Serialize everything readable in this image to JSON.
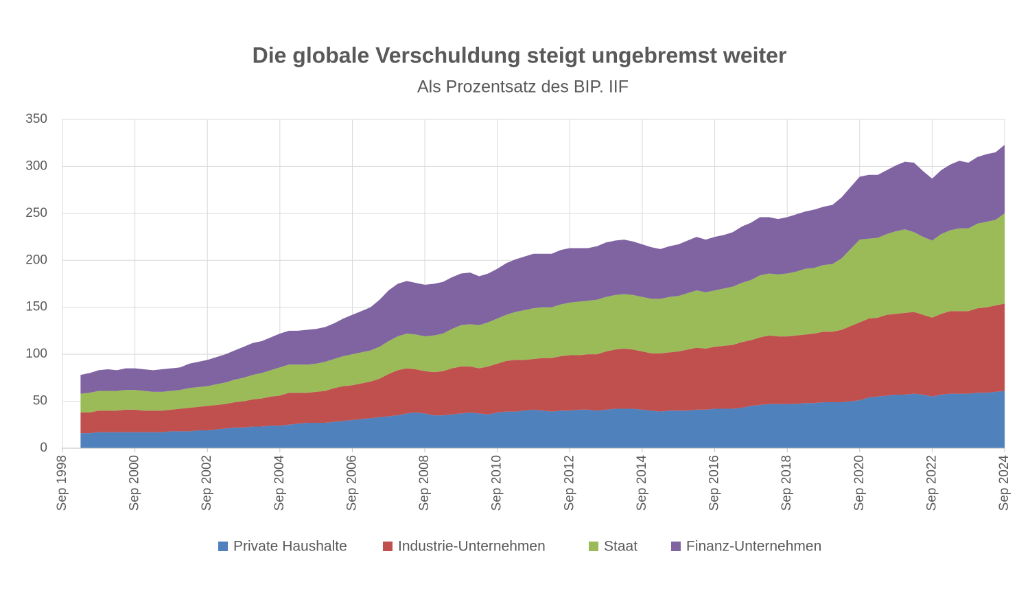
{
  "chart_data": {
    "type": "stacked_area",
    "title": "Die globale Verschuldung steigt ungebremst weiter",
    "subtitle": "Als Prozentsatz des BIP. IIF",
    "x": [
      "1999-03",
      "1999-06",
      "1999-09",
      "1999-12",
      "2000-03",
      "2000-06",
      "2000-09",
      "2000-12",
      "2001-03",
      "2001-06",
      "2001-09",
      "2001-12",
      "2002-03",
      "2002-06",
      "2002-09",
      "2002-12",
      "2003-03",
      "2003-06",
      "2003-09",
      "2003-12",
      "2004-03",
      "2004-06",
      "2004-09",
      "2004-12",
      "2005-03",
      "2005-06",
      "2005-09",
      "2005-12",
      "2006-03",
      "2006-06",
      "2006-09",
      "2006-12",
      "2007-03",
      "2007-06",
      "2007-09",
      "2007-12",
      "2008-03",
      "2008-06",
      "2008-09",
      "2008-12",
      "2009-03",
      "2009-06",
      "2009-09",
      "2009-12",
      "2010-03",
      "2010-06",
      "2010-09",
      "2010-12",
      "2011-03",
      "2011-06",
      "2011-09",
      "2011-12",
      "2012-03",
      "2012-06",
      "2012-09",
      "2012-12",
      "2013-03",
      "2013-06",
      "2013-09",
      "2013-12",
      "2014-03",
      "2014-06",
      "2014-09",
      "2014-12",
      "2015-03",
      "2015-06",
      "2015-09",
      "2015-12",
      "2016-03",
      "2016-06",
      "2016-09",
      "2016-12",
      "2017-03",
      "2017-06",
      "2017-09",
      "2017-12",
      "2018-03",
      "2018-06",
      "2018-09",
      "2018-12",
      "2019-03",
      "2019-06",
      "2019-09",
      "2019-12",
      "2020-03",
      "2020-06",
      "2020-09",
      "2020-12",
      "2021-03",
      "2021-06",
      "2021-09",
      "2021-12",
      "2022-03",
      "2022-06",
      "2022-09",
      "2022-12",
      "2023-03",
      "2023-06",
      "2023-09",
      "2023-12",
      "2024-03",
      "2024-06",
      "2024-09"
    ],
    "series": [
      {
        "name": "Private Haushalte",
        "color": "#4f81bd",
        "values": [
          16,
          16,
          17,
          17,
          17,
          17,
          17,
          17,
          17,
          17,
          18,
          18,
          18,
          19,
          19,
          20,
          21,
          22,
          22,
          23,
          23,
          24,
          24,
          25,
          26,
          27,
          27,
          27,
          28,
          29,
          30,
          31,
          32,
          33,
          34,
          35,
          37,
          38,
          37,
          35,
          35,
          36,
          37,
          38,
          37,
          36,
          38,
          39,
          39,
          40,
          41,
          40,
          39,
          40,
          40,
          41,
          41,
          40,
          41,
          42,
          42,
          42,
          41,
          40,
          39,
          40,
          40,
          40,
          41,
          41,
          42,
          42,
          42,
          43,
          45,
          46,
          47,
          47,
          47,
          47,
          48,
          48,
          49,
          49,
          49,
          50,
          51,
          54,
          55,
          56,
          57,
          57,
          58,
          57,
          55,
          57,
          58,
          58,
          58,
          59,
          59,
          60,
          61
        ]
      },
      {
        "name": "Industrie-Unternehmen",
        "color": "#c0504d",
        "values": [
          22,
          22,
          23,
          23,
          23,
          24,
          24,
          23,
          23,
          23,
          23,
          24,
          25,
          25,
          26,
          26,
          26,
          27,
          28,
          29,
          30,
          31,
          32,
          34,
          33,
          32,
          33,
          34,
          36,
          37,
          37,
          38,
          39,
          41,
          45,
          48,
          48,
          46,
          45,
          46,
          47,
          49,
          50,
          49,
          48,
          51,
          52,
          54,
          55,
          54,
          54,
          56,
          57,
          58,
          59,
          58,
          59,
          60,
          62,
          63,
          64,
          63,
          62,
          61,
          62,
          62,
          63,
          65,
          66,
          65,
          66,
          67,
          68,
          70,
          70,
          72,
          73,
          72,
          72,
          73,
          73,
          74,
          75,
          75,
          77,
          80,
          83,
          84,
          84,
          86,
          86,
          87,
          87,
          85,
          84,
          86,
          88,
          88,
          88,
          90,
          91,
          92,
          93
        ]
      },
      {
        "name": "Staat",
        "color": "#9bbb59",
        "values": [
          20,
          21,
          21,
          21,
          21,
          21,
          21,
          21,
          20,
          20,
          20,
          20,
          21,
          21,
          21,
          22,
          23,
          24,
          25,
          26,
          27,
          28,
          30,
          30,
          30,
          30,
          30,
          31,
          31,
          32,
          33,
          33,
          33,
          34,
          35,
          36,
          37,
          37,
          37,
          39,
          40,
          42,
          44,
          45,
          46,
          47,
          48,
          49,
          51,
          53,
          54,
          54,
          54,
          55,
          56,
          57,
          57,
          58,
          58,
          58,
          58,
          58,
          58,
          58,
          58,
          59,
          59,
          60,
          61,
          60,
          60,
          61,
          62,
          63,
          64,
          66,
          66,
          66,
          67,
          68,
          70,
          70,
          71,
          72,
          76,
          82,
          88,
          85,
          85,
          86,
          88,
          89,
          85,
          83,
          82,
          85,
          86,
          88,
          88,
          90,
          91,
          91,
          96
        ]
      },
      {
        "name": "Finanz-Unternehmen",
        "color": "#8064a2",
        "values": [
          20,
          21,
          22,
          23,
          22,
          23,
          23,
          23,
          23,
          24,
          24,
          24,
          26,
          27,
          28,
          29,
          30,
          31,
          33,
          34,
          34,
          35,
          36,
          36,
          36,
          37,
          37,
          37,
          38,
          40,
          42,
          44,
          46,
          50,
          54,
          56,
          56,
          55,
          55,
          55,
          55,
          55,
          55,
          55,
          52,
          52,
          53,
          55,
          56,
          57,
          58,
          57,
          57,
          58,
          58,
          57,
          56,
          57,
          58,
          58,
          58,
          57,
          56,
          55,
          53,
          54,
          55,
          56,
          57,
          56,
          57,
          57,
          58,
          60,
          61,
          62,
          60,
          59,
          60,
          61,
          61,
          62,
          62,
          63,
          65,
          66,
          67,
          68,
          67,
          68,
          70,
          72,
          74,
          70,
          66,
          68,
          70,
          72,
          70,
          71,
          72,
          72,
          73
        ]
      }
    ],
    "xlim": [
      "1998-09",
      "2024-09"
    ],
    "xticks": [
      {
        "value": "1998-09",
        "label": "Sep 1998"
      },
      {
        "value": "2000-09",
        "label": "Sep 2000"
      },
      {
        "value": "2002-09",
        "label": "Sep 2002"
      },
      {
        "value": "2004-09",
        "label": "Sep 2004"
      },
      {
        "value": "2006-09",
        "label": "Sep 2006"
      },
      {
        "value": "2008-09",
        "label": "Sep 2008"
      },
      {
        "value": "2010-09",
        "label": "Sep 2010"
      },
      {
        "value": "2012-09",
        "label": "Sep 2012"
      },
      {
        "value": "2014-09",
        "label": "Sep 2014"
      },
      {
        "value": "2016-09",
        "label": "Sep 2016"
      },
      {
        "value": "2018-09",
        "label": "Sep 2018"
      },
      {
        "value": "2020-09",
        "label": "Sep 2020"
      },
      {
        "value": "2022-09",
        "label": "Sep 2022"
      },
      {
        "value": "2024-09",
        "label": "Sep 2024"
      }
    ],
    "ylim": [
      0,
      350
    ],
    "yticks": [
      0,
      50,
      100,
      150,
      200,
      250,
      300,
      350
    ],
    "grid": true,
    "legend": "bottom"
  }
}
